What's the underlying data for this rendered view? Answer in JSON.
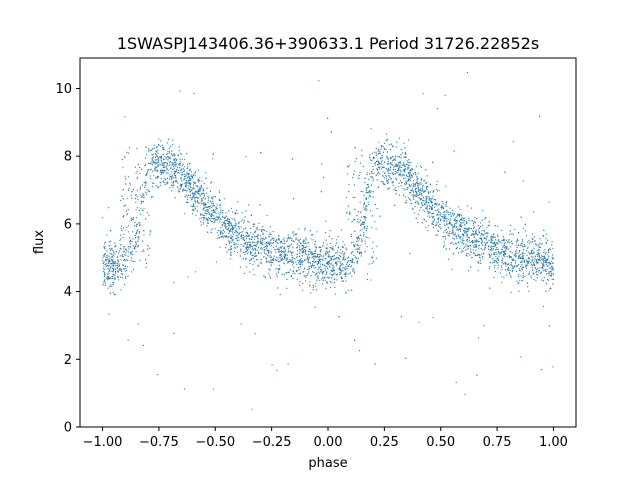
{
  "chart_data": {
    "type": "scatter",
    "title": "1SWASPJ143406.36+390633.1 Period 31726.22852s",
    "xlabel": "phase",
    "ylabel": "flux",
    "xlim": [
      -1.1,
      1.1
    ],
    "ylim": [
      0,
      10.9
    ],
    "x_ticks": [
      -1.0,
      -0.75,
      -0.5,
      -0.25,
      0.0,
      0.25,
      0.5,
      0.75,
      1.0
    ],
    "x_tick_labels": [
      "−1.00",
      "−0.75",
      "−0.50",
      "−0.25",
      "0.00",
      "0.25",
      "0.50",
      "0.75",
      "1.00"
    ],
    "y_ticks": [
      0,
      2,
      4,
      6,
      8,
      10
    ],
    "y_tick_labels": [
      "0",
      "2",
      "4",
      "6",
      "8",
      "10"
    ],
    "grid": false,
    "legend": "none",
    "marker_color": "#1f77b4",
    "series": [
      {
        "trend_points": [
          [
            -1.0,
            4.8
          ],
          [
            -0.9,
            4.8
          ],
          [
            -0.85,
            5.6
          ],
          [
            -0.8,
            7.7
          ],
          [
            -0.75,
            7.8
          ],
          [
            -0.7,
            7.7
          ],
          [
            -0.65,
            7.5
          ],
          [
            -0.6,
            7.0
          ],
          [
            -0.55,
            6.6
          ],
          [
            -0.5,
            6.2
          ],
          [
            -0.45,
            5.9
          ],
          [
            -0.4,
            5.7
          ],
          [
            -0.35,
            5.5
          ],
          [
            -0.3,
            5.4
          ],
          [
            -0.25,
            5.2
          ],
          [
            -0.2,
            5.1
          ],
          [
            -0.15,
            5.0
          ],
          [
            -0.1,
            5.0
          ],
          [
            -0.05,
            4.9
          ],
          [
            0.0,
            4.8
          ],
          [
            0.1,
            4.8
          ],
          [
            0.15,
            5.6
          ],
          [
            0.2,
            7.7
          ],
          [
            0.25,
            7.8
          ],
          [
            0.3,
            7.7
          ],
          [
            0.35,
            7.5
          ],
          [
            0.4,
            7.0
          ],
          [
            0.45,
            6.6
          ],
          [
            0.5,
            6.2
          ],
          [
            0.55,
            5.9
          ],
          [
            0.6,
            5.7
          ],
          [
            0.65,
            5.5
          ],
          [
            0.7,
            5.4
          ],
          [
            0.75,
            5.2
          ],
          [
            0.8,
            5.1
          ],
          [
            0.85,
            5.0
          ],
          [
            0.9,
            5.0
          ],
          [
            0.95,
            4.9
          ],
          [
            1.0,
            4.8
          ]
        ]
      }
    ]
  }
}
